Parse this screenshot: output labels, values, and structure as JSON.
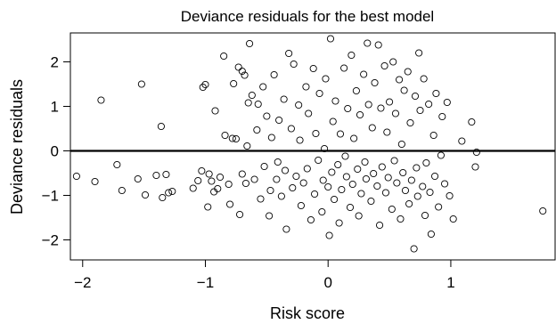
{
  "chart_data": {
    "type": "scatter",
    "title": "Deviance residuals for the best model",
    "xlabel": "Risk score",
    "ylabel": "Deviance residuals",
    "xlim": [
      -2.1,
      1.85
    ],
    "ylim": [
      -2.45,
      2.65
    ],
    "x_ticks": [
      -2,
      -1,
      0,
      1
    ],
    "x_tick_labels": [
      "−2",
      "−1",
      "0",
      "1"
    ],
    "y_ticks": [
      -2,
      -1,
      0,
      1,
      2
    ],
    "y_tick_labels": [
      "−2",
      "−1",
      "0",
      "1",
      "2"
    ],
    "reference_line_y": 0,
    "grid": false,
    "marker": "open-circle",
    "points": [
      [
        -2.05,
        -0.57
      ],
      [
        -1.9,
        -0.69
      ],
      [
        -1.85,
        1.14
      ],
      [
        -1.72,
        -0.31
      ],
      [
        -1.68,
        -0.89
      ],
      [
        -1.55,
        -0.63
      ],
      [
        -1.52,
        1.5
      ],
      [
        -1.49,
        -0.99
      ],
      [
        -1.4,
        -0.55
      ],
      [
        -1.36,
        0.55
      ],
      [
        -1.35,
        -1.05
      ],
      [
        -1.32,
        -0.53
      ],
      [
        -1.3,
        -0.94
      ],
      [
        -1.27,
        -0.91
      ],
      [
        -1.1,
        -0.84
      ],
      [
        -1.06,
        -0.67
      ],
      [
        -1.03,
        -0.45
      ],
      [
        -1.02,
        1.43
      ],
      [
        -1.0,
        1.49
      ],
      [
        -0.98,
        -1.26
      ],
      [
        -0.97,
        -0.52
      ],
      [
        -0.95,
        -0.68
      ],
      [
        -0.93,
        -0.92
      ],
      [
        -0.92,
        0.9
      ],
      [
        -0.9,
        -0.85
      ],
      [
        -0.88,
        -0.59
      ],
      [
        -0.85,
        2.13
      ],
      [
        -0.84,
        0.35
      ],
      [
        -0.81,
        -0.75
      ],
      [
        -0.8,
        -1.2
      ],
      [
        -0.78,
        0.28
      ],
      [
        -0.77,
        1.51
      ],
      [
        -0.75,
        0.27
      ],
      [
        -0.73,
        1.88
      ],
      [
        -0.72,
        -1.43
      ],
      [
        -0.7,
        1.79
      ],
      [
        -0.7,
        -0.52
      ],
      [
        -0.68,
        1.7
      ],
      [
        -0.67,
        -0.73
      ],
      [
        -0.66,
        0.11
      ],
      [
        -0.65,
        1.08
      ],
      [
        -0.64,
        2.41
      ],
      [
        -0.62,
        1.25
      ],
      [
        -0.6,
        -0.64
      ],
      [
        -0.58,
        0.47
      ],
      [
        -0.57,
        1.05
      ],
      [
        -0.55,
        -1.08
      ],
      [
        -0.53,
        1.44
      ],
      [
        -0.52,
        -0.35
      ],
      [
        -0.5,
        0.78
      ],
      [
        -0.48,
        -1.46
      ],
      [
        -0.47,
        -0.89
      ],
      [
        -0.46,
        0.3
      ],
      [
        -0.44,
        1.71
      ],
      [
        -0.42,
        -0.64
      ],
      [
        -0.41,
        -0.25
      ],
      [
        -0.4,
        0.69
      ],
      [
        -0.38,
        -1.02
      ],
      [
        -0.36,
        1.16
      ],
      [
        -0.35,
        -0.44
      ],
      [
        -0.34,
        -1.76
      ],
      [
        -0.32,
        2.19
      ],
      [
        -0.3,
        0.5
      ],
      [
        -0.29,
        -0.83
      ],
      [
        -0.28,
        1.95
      ],
      [
        -0.26,
        -0.57
      ],
      [
        -0.24,
        1.03
      ],
      [
        -0.23,
        0.24
      ],
      [
        -0.22,
        -1.23
      ],
      [
        -0.2,
        -0.72
      ],
      [
        -0.18,
        1.44
      ],
      [
        -0.17,
        -0.4
      ],
      [
        -0.16,
        0.84
      ],
      [
        -0.14,
        -1.55
      ],
      [
        -0.12,
        1.85
      ],
      [
        -0.11,
        -0.97
      ],
      [
        -0.1,
        0.39
      ],
      [
        -0.08,
        -0.21
      ],
      [
        -0.07,
        1.29
      ],
      [
        -0.05,
        -1.37
      ],
      [
        -0.04,
        -0.66
      ],
      [
        -0.03,
        0.05
      ],
      [
        -0.02,
        1.62
      ],
      [
        0.0,
        -0.81
      ],
      [
        0.01,
        -1.9
      ],
      [
        0.02,
        2.52
      ],
      [
        0.03,
        -0.48
      ],
      [
        0.04,
        0.66
      ],
      [
        0.05,
        -1.09
      ],
      [
        0.06,
        1.12
      ],
      [
        0.08,
        -0.31
      ],
      [
        0.09,
        -1.62
      ],
      [
        0.1,
        0.38
      ],
      [
        0.11,
        -0.87
      ],
      [
        0.13,
        1.86
      ],
      [
        0.14,
        -0.12
      ],
      [
        0.15,
        -0.58
      ],
      [
        0.16,
        0.95
      ],
      [
        0.18,
        -1.27
      ],
      [
        0.19,
        2.15
      ],
      [
        0.2,
        -0.75
      ],
      [
        0.21,
        0.28
      ],
      [
        0.23,
        1.35
      ],
      [
        0.24,
        -0.41
      ],
      [
        0.25,
        -1.46
      ],
      [
        0.26,
        0.81
      ],
      [
        0.27,
        -0.96
      ],
      [
        0.29,
        1.72
      ],
      [
        0.3,
        -0.25
      ],
      [
        0.31,
        -0.63
      ],
      [
        0.32,
        2.42
      ],
      [
        0.33,
        1.04
      ],
      [
        0.35,
        -1.13
      ],
      [
        0.36,
        0.52
      ],
      [
        0.37,
        -0.51
      ],
      [
        0.38,
        1.53
      ],
      [
        0.4,
        -0.79
      ],
      [
        0.41,
        2.38
      ],
      [
        0.42,
        -1.67
      ],
      [
        0.43,
        0.96
      ],
      [
        0.44,
        -0.36
      ],
      [
        0.46,
        1.91
      ],
      [
        0.47,
        -0.94
      ],
      [
        0.48,
        0.42
      ],
      [
        0.49,
        -0.6
      ],
      [
        0.5,
        1.1
      ],
      [
        0.52,
        -1.31
      ],
      [
        0.53,
        2.0
      ],
      [
        0.54,
        -0.22
      ],
      [
        0.55,
        0.84
      ],
      [
        0.56,
        -0.72
      ],
      [
        0.58,
        1.6
      ],
      [
        0.59,
        -1.53
      ],
      [
        0.6,
        0.15
      ],
      [
        0.61,
        -0.49
      ],
      [
        0.62,
        1.36
      ],
      [
        0.63,
        -0.89
      ],
      [
        0.65,
        1.78
      ],
      [
        0.66,
        -1.19
      ],
      [
        0.67,
        0.63
      ],
      [
        0.68,
        -0.66
      ],
      [
        0.7,
        -2.2
      ],
      [
        0.71,
        1.23
      ],
      [
        0.72,
        -0.38
      ],
      [
        0.73,
        -1.02
      ],
      [
        0.74,
        2.2
      ],
      [
        0.75,
        0.91
      ],
      [
        0.77,
        -0.8
      ],
      [
        0.78,
        1.62
      ],
      [
        0.79,
        -1.45
      ],
      [
        0.8,
        -0.27
      ],
      [
        0.82,
        1.05
      ],
      [
        0.83,
        -0.93
      ],
      [
        0.84,
        -1.87
      ],
      [
        0.86,
        0.35
      ],
      [
        0.87,
        -0.57
      ],
      [
        0.88,
        1.29
      ],
      [
        0.9,
        -1.26
      ],
      [
        0.92,
        -0.1
      ],
      [
        0.93,
        0.77
      ],
      [
        0.95,
        -0.74
      ],
      [
        0.97,
        1.09
      ],
      [
        0.99,
        -1.01
      ],
      [
        1.02,
        -1.53
      ],
      [
        1.09,
        0.22
      ],
      [
        1.17,
        0.65
      ],
      [
        1.2,
        -0.36
      ],
      [
        1.21,
        -0.03
      ],
      [
        1.75,
        -1.35
      ]
    ]
  }
}
